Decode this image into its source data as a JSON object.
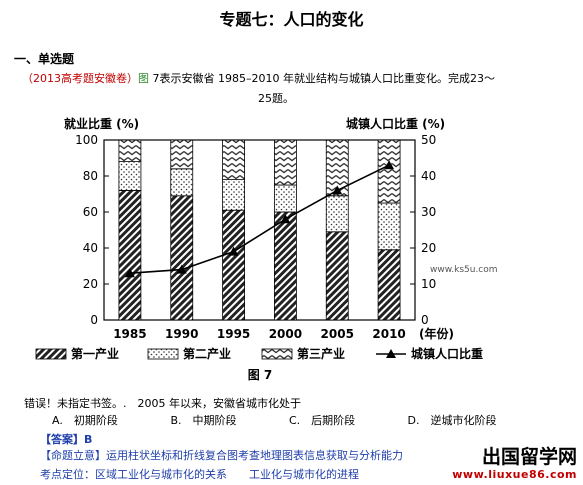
{
  "doc": {
    "title": "专题七：人口的变化",
    "section": "一、单选题",
    "question": {
      "source": "（2013高考题安徽卷）",
      "fig_ref": "图",
      "text1": "7表示安徽省 1985–2010 年就业结构与城镇人口比重变化。完成23～",
      "text2": "25题。"
    },
    "error_line": "错误！未指定书签。.　2005 年以来，安徽省城市化处于",
    "options": [
      "A.　初期阶段",
      "B.　中期阶段",
      "C.　后期阶段",
      "D.　逆城市化阶段"
    ],
    "answer_label": "【答案】",
    "answer_value": "B",
    "intent_label": "【命题立意】",
    "intent_text": "运用柱状坐标和折线复合图考查地理图表信息获取与分析能力",
    "knowledge_point": "考点定位：区域工业化与城市化的关系　　工业化与城市化的进程",
    "watermark": {
      "brand": "出国留学网",
      "url": "www.liuxue86.com"
    }
  },
  "chart_data": {
    "type": "bar",
    "stacked": true,
    "figure_label": "图 7",
    "categories": [
      "1985",
      "1990",
      "1995",
      "2000",
      "2005",
      "2010"
    ],
    "ylabel_left": "就业比重 (%)",
    "ylabel_right": "城镇人口比重 (%)",
    "xlabel": "(年份)",
    "ylim_left": [
      0,
      100
    ],
    "ylim_right": [
      0,
      50
    ],
    "yticks_left": [
      "0",
      "20",
      "40",
      "60",
      "80",
      "100"
    ],
    "yticks_right": [
      "0",
      "10",
      "20",
      "30",
      "40",
      "50"
    ],
    "series": [
      {
        "name": "第一产业",
        "values": [
          72,
          69,
          61,
          60,
          49,
          39
        ]
      },
      {
        "name": "第二产业",
        "values": [
          16,
          15,
          17,
          15,
          20,
          26
        ]
      },
      {
        "name": "第三产业",
        "values": [
          12,
          16,
          22,
          25,
          31,
          35
        ]
      }
    ],
    "line_series": {
      "name": "城镇人口比重",
      "axis": "right",
      "values": [
        13,
        14,
        19,
        28,
        36,
        43
      ]
    },
    "watermark": "www.ks5u.com",
    "legend_position": "bottom"
  }
}
